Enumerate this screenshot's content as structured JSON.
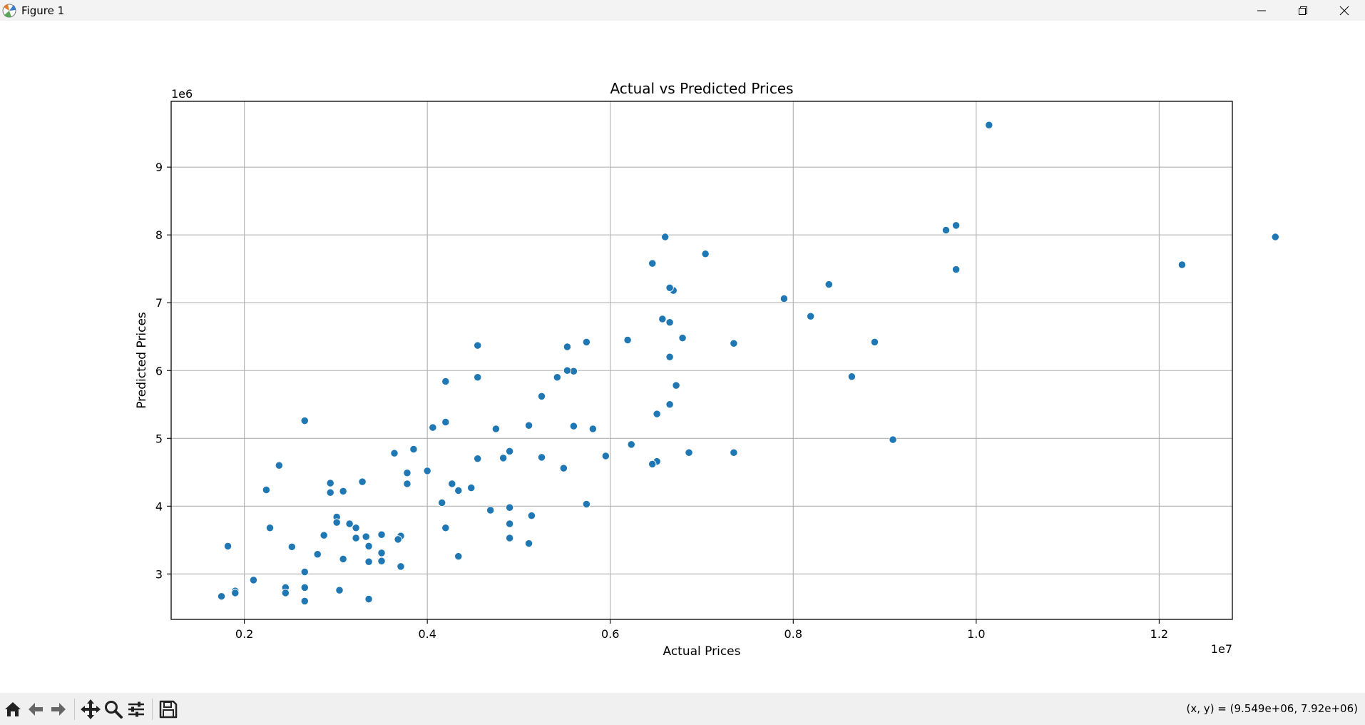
{
  "window": {
    "title": "Figure 1",
    "icons": [
      "matplotlib-icon",
      "minimize-icon",
      "restore-icon",
      "close-icon"
    ]
  },
  "toolbar": {
    "icons": [
      "home-icon",
      "back-icon",
      "forward-icon",
      "pan-icon",
      "zoom-icon",
      "configure-subplots-icon",
      "save-icon"
    ],
    "coords": "(x, y) = (9.549e+06, 7.92e+06)"
  },
  "colors": {
    "marker": "#1f77b4",
    "grid": "#b0b0b0",
    "toolbar": "#f0f0f0",
    "titlebar": "#f3f3f3"
  },
  "chart_data": {
    "type": "scatter",
    "title": "Actual vs Predicted Prices",
    "xlabel": "Actual Prices",
    "ylabel": "Predicted Prices",
    "x_offset_label": "1e7",
    "y_offset_label": "1e6",
    "xlim": [
      0.12,
      1.28
    ],
    "ylim": [
      2.33,
      9.97
    ],
    "xticks": [
      0.2,
      0.4,
      0.6,
      0.8,
      1.0,
      1.2
    ],
    "xtick_labels": [
      "0.2",
      "0.4",
      "0.6",
      "0.8",
      "1.0",
      "1.2"
    ],
    "yticks": [
      3,
      4,
      5,
      6,
      7,
      8,
      9
    ],
    "ytick_labels": [
      "3",
      "4",
      "5",
      "6",
      "7",
      "8",
      "9"
    ],
    "grid": true,
    "legend": null,
    "points": [
      [
        1.014,
        9.62
      ],
      [
        1.327,
        7.97
      ],
      [
        1.225,
        7.56
      ],
      [
        0.978,
        8.14
      ],
      [
        0.967,
        8.07
      ],
      [
        0.978,
        7.49
      ],
      [
        0.909,
        4.98
      ],
      [
        0.889,
        6.42
      ],
      [
        0.864,
        5.91
      ],
      [
        0.839,
        7.27
      ],
      [
        0.819,
        6.8
      ],
      [
        0.79,
        7.06
      ],
      [
        0.735,
        6.4
      ],
      [
        0.735,
        4.79
      ],
      [
        0.704,
        7.72
      ],
      [
        0.686,
        4.79
      ],
      [
        0.679,
        6.48
      ],
      [
        0.672,
        5.78
      ],
      [
        0.669,
        7.18
      ],
      [
        0.665,
        7.22
      ],
      [
        0.665,
        6.71
      ],
      [
        0.665,
        6.2
      ],
      [
        0.665,
        5.5
      ],
      [
        0.66,
        7.97
      ],
      [
        0.657,
        6.76
      ],
      [
        0.651,
        5.36
      ],
      [
        0.651,
        4.66
      ],
      [
        0.646,
        7.58
      ],
      [
        0.646,
        4.62
      ],
      [
        0.623,
        4.91
      ],
      [
        0.619,
        6.45
      ],
      [
        0.595,
        4.74
      ],
      [
        0.581,
        5.14
      ],
      [
        0.574,
        6.42
      ],
      [
        0.574,
        4.03
      ],
      [
        0.56,
        5.99
      ],
      [
        0.56,
        5.18
      ],
      [
        0.553,
        6.35
      ],
      [
        0.553,
        6.0
      ],
      [
        0.549,
        4.56
      ],
      [
        0.542,
        5.9
      ],
      [
        0.525,
        5.62
      ],
      [
        0.525,
        4.72
      ],
      [
        0.514,
        3.86
      ],
      [
        0.511,
        5.19
      ],
      [
        0.511,
        3.45
      ],
      [
        0.49,
        4.81
      ],
      [
        0.49,
        3.98
      ],
      [
        0.49,
        3.74
      ],
      [
        0.49,
        3.53
      ],
      [
        0.483,
        4.71
      ],
      [
        0.475,
        5.14
      ],
      [
        0.469,
        3.94
      ],
      [
        0.455,
        6.37
      ],
      [
        0.455,
        5.9
      ],
      [
        0.455,
        4.7
      ],
      [
        0.448,
        4.27
      ],
      [
        0.434,
        4.23
      ],
      [
        0.434,
        3.26
      ],
      [
        0.427,
        4.33
      ],
      [
        0.42,
        5.84
      ],
      [
        0.42,
        5.24
      ],
      [
        0.42,
        3.68
      ],
      [
        0.416,
        4.05
      ],
      [
        0.406,
        5.16
      ],
      [
        0.4,
        4.52
      ],
      [
        0.385,
        4.84
      ],
      [
        0.378,
        4.49
      ],
      [
        0.378,
        4.33
      ],
      [
        0.371,
        3.56
      ],
      [
        0.371,
        3.11
      ],
      [
        0.368,
        3.51
      ],
      [
        0.364,
        4.78
      ],
      [
        0.35,
        3.58
      ],
      [
        0.35,
        3.31
      ],
      [
        0.35,
        3.19
      ],
      [
        0.336,
        3.41
      ],
      [
        0.336,
        3.18
      ],
      [
        0.336,
        2.63
      ],
      [
        0.333,
        3.55
      ],
      [
        0.329,
        4.36
      ],
      [
        0.322,
        3.68
      ],
      [
        0.322,
        3.53
      ],
      [
        0.315,
        3.74
      ],
      [
        0.308,
        4.22
      ],
      [
        0.308,
        3.22
      ],
      [
        0.304,
        2.76
      ],
      [
        0.301,
        3.84
      ],
      [
        0.301,
        3.76
      ],
      [
        0.294,
        4.34
      ],
      [
        0.294,
        4.2
      ],
      [
        0.287,
        3.57
      ],
      [
        0.28,
        3.29
      ],
      [
        0.266,
        5.26
      ],
      [
        0.266,
        3.03
      ],
      [
        0.266,
        2.8
      ],
      [
        0.266,
        2.6
      ],
      [
        0.252,
        3.4
      ],
      [
        0.245,
        2.8
      ],
      [
        0.245,
        2.72
      ],
      [
        0.238,
        4.6
      ],
      [
        0.228,
        3.68
      ],
      [
        0.224,
        4.24
      ],
      [
        0.21,
        2.91
      ],
      [
        0.19,
        2.75
      ],
      [
        0.19,
        2.72
      ],
      [
        0.182,
        3.41
      ],
      [
        0.175,
        2.67
      ]
    ]
  }
}
